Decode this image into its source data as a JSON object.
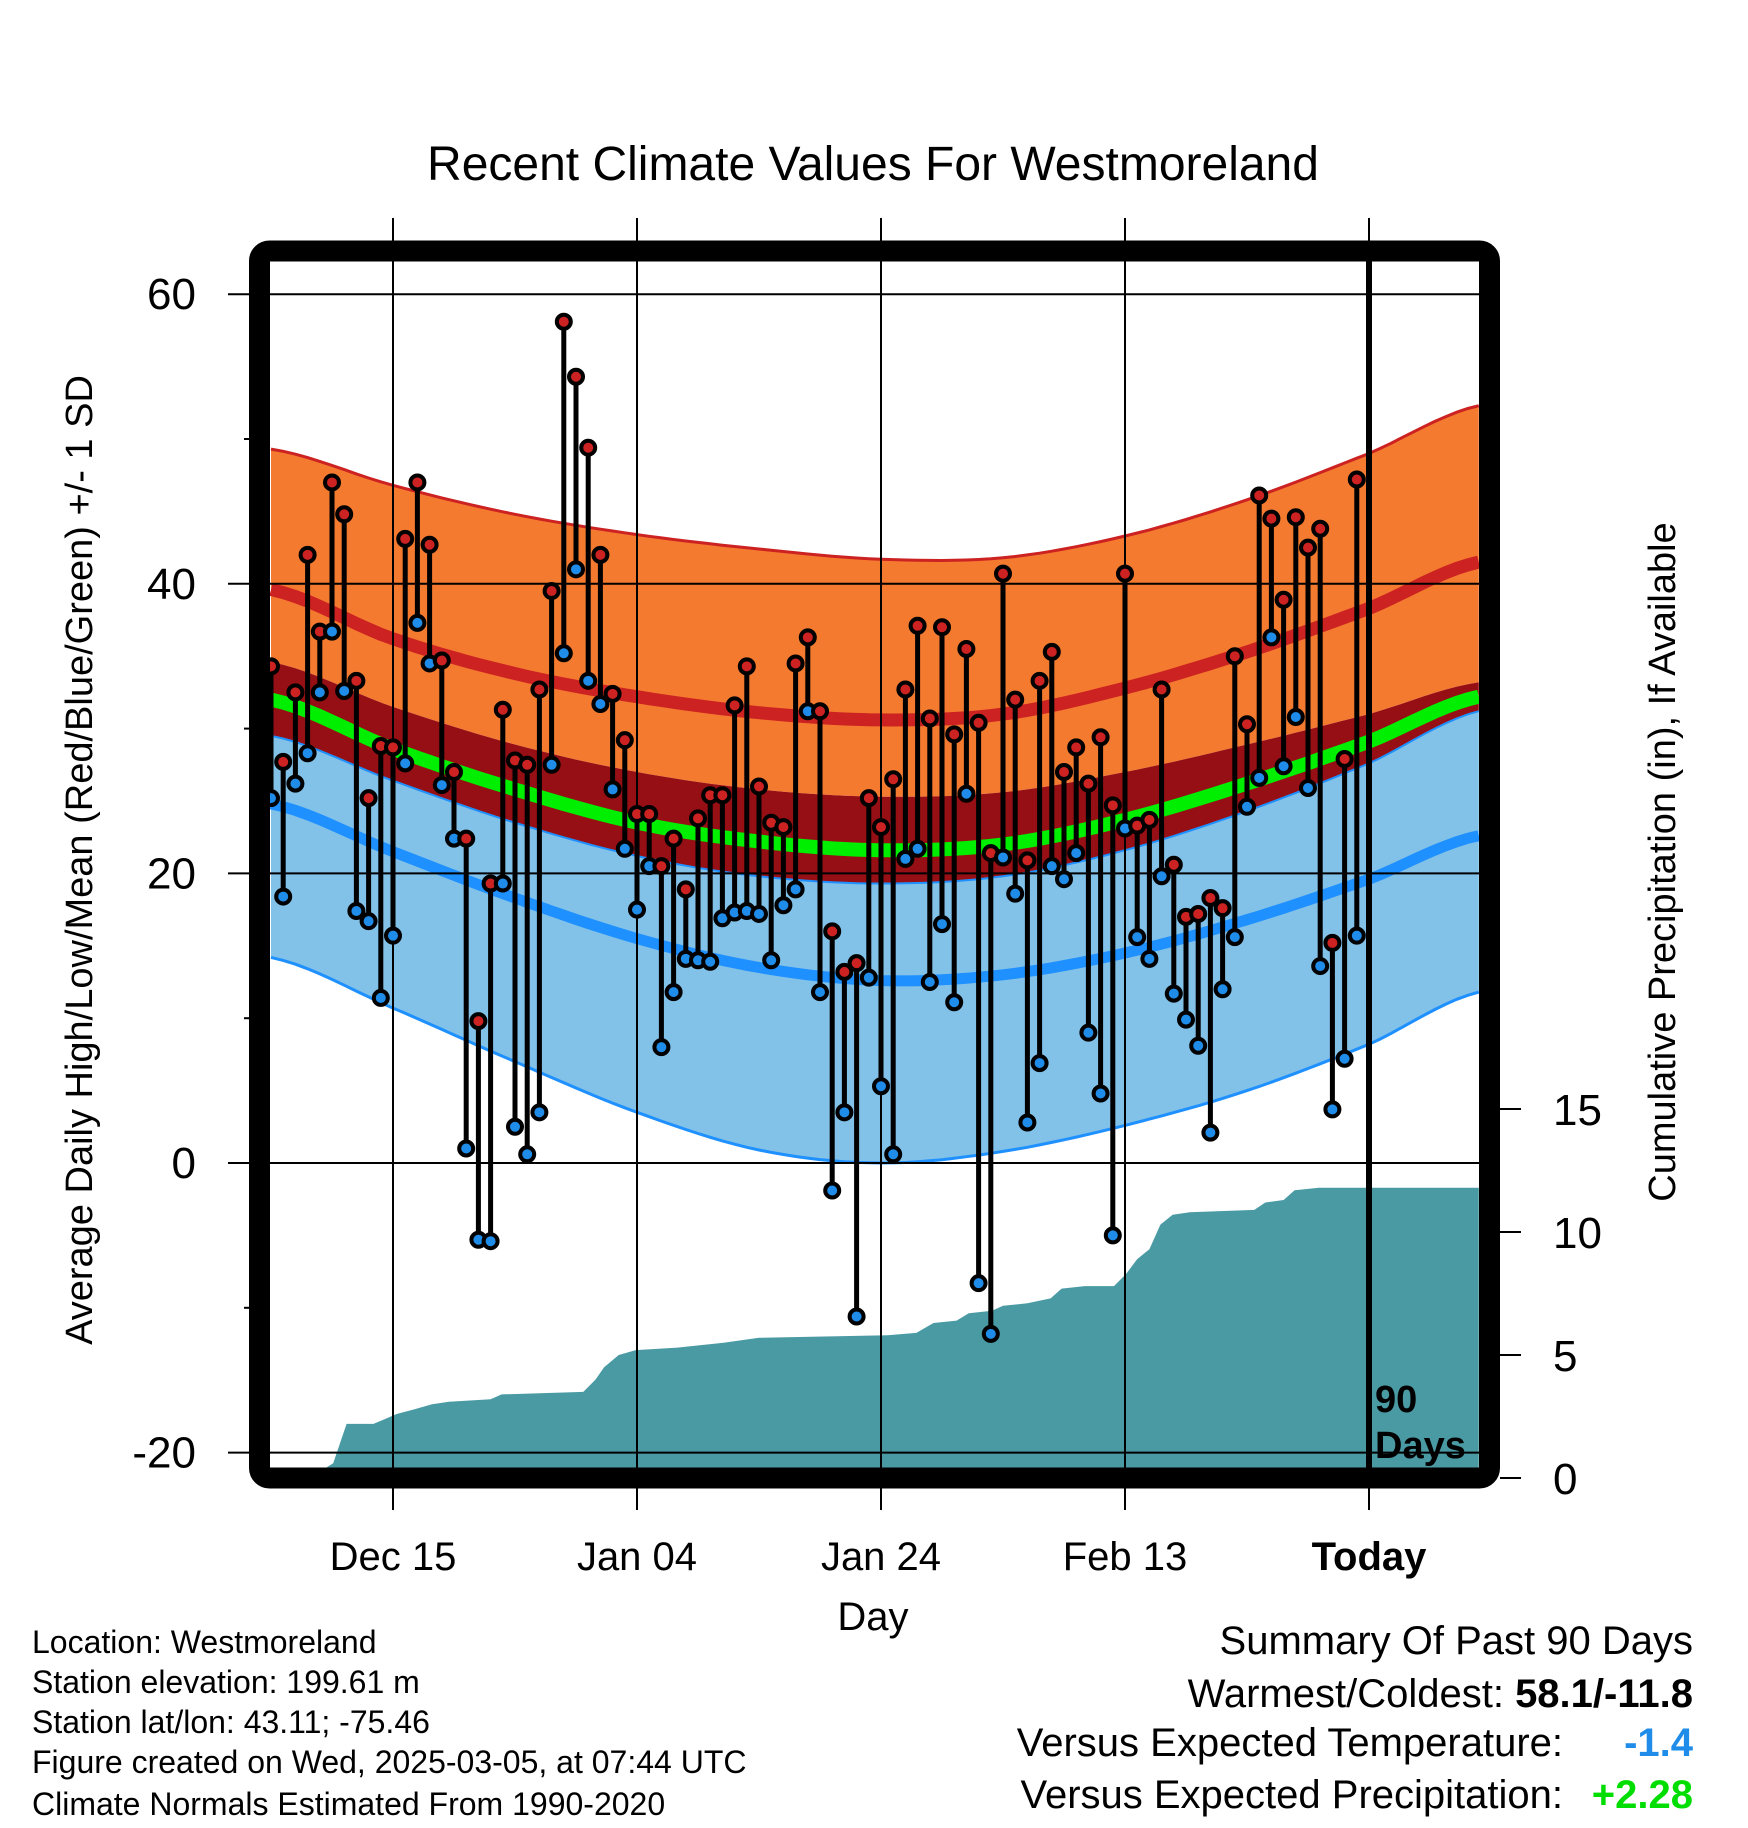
{
  "chart_data": {
    "type": "line",
    "title": "Recent Climate Values For Westmoreland",
    "xlabel": "Day",
    "ylabel": "Average Daily High/Low/Mean (Red/Blue/Green) +/- 1 SD",
    "y2label": "Cumulative Precipitation (in), If Available",
    "xlim": [
      -90,
      9
    ],
    "ylim": [
      -21.5,
      63.5
    ],
    "y2lim": [
      0,
      23
    ],
    "x_ticks": [
      {
        "day": -80,
        "label": "Dec 15"
      },
      {
        "day": -60,
        "label": "Jan 04"
      },
      {
        "day": -40,
        "label": "Jan 24"
      },
      {
        "day": -20,
        "label": "Feb 13"
      },
      {
        "day": 0,
        "label": "Today"
      }
    ],
    "y_ticks": [
      {
        "value": 60,
        "label": "60"
      },
      {
        "value": 40,
        "label": "40"
      },
      {
        "value": 20,
        "label": "20"
      },
      {
        "value": 0,
        "label": "0"
      },
      {
        "value": -20,
        "label": "-20"
      }
    ],
    "y_minor_ticks": [
      50,
      30,
      10,
      -10
    ],
    "y2_ticks": [
      {
        "value": 15,
        "label": "15"
      },
      {
        "value": 10,
        "label": "10"
      },
      {
        "value": 5,
        "label": "5"
      },
      {
        "value": 0,
        "label": "0"
      }
    ],
    "today_label": [
      "90",
      "Days"
    ],
    "grid": true,
    "normals": {
      "days": [
        -90,
        -80,
        -70,
        -60,
        -50,
        -40,
        -30,
        -20,
        -10,
        0,
        9
      ],
      "high_plus_sd": [
        49.3,
        46.8,
        44.8,
        43.4,
        42.4,
        41.7,
        41.8,
        43.3,
        45.8,
        49.0,
        52.3
      ],
      "high_mean": [
        39.6,
        36.2,
        33.8,
        32.2,
        31.1,
        30.6,
        31.0,
        32.8,
        35.3,
        38.3,
        41.5
      ],
      "high_minus_sd": [
        34.6,
        31.5,
        28.9,
        27.0,
        25.8,
        25.3,
        25.6,
        27.0,
        28.9,
        31.0,
        33.2
      ],
      "mean": [
        32.0,
        28.6,
        25.8,
        23.5,
        22.2,
        21.6,
        22.0,
        23.7,
        26.2,
        29.1,
        32.2
      ],
      "low_plus_sd": [
        29.5,
        26.4,
        23.5,
        21.2,
        19.8,
        19.3,
        19.8,
        21.6,
        24.3,
        27.6,
        31.2
      ],
      "low_mean": [
        24.8,
        21.5,
        18.3,
        15.5,
        13.5,
        12.6,
        13.0,
        14.5,
        16.8,
        19.6,
        22.6
      ],
      "low_minus_sd": [
        14.2,
        10.7,
        7.0,
        3.5,
        0.9,
        0.0,
        0.8,
        2.6,
        5.0,
        8.2,
        11.8
      ]
    },
    "observed": {
      "start_day": -90,
      "high": [
        34.3,
        27.7,
        32.5,
        42,
        36.7,
        47,
        44.8,
        33.3,
        25.2,
        28.8,
        28.7,
        43.1,
        47,
        42.7,
        34.7,
        27,
        22.4,
        9.8,
        19.3,
        31.3,
        27.8,
        27.5,
        32.7,
        39.5,
        58.1,
        54.3,
        49.4,
        42,
        32.4,
        29.2,
        24.1,
        24.1,
        20.5,
        22.4,
        18.9,
        23.8,
        25.4,
        25.4,
        31.6,
        34.3,
        26,
        23.5,
        23.2,
        34.5,
        36.3,
        31.2,
        16,
        13.2,
        13.8,
        25.2,
        23.2,
        26.5,
        32.7,
        37.1,
        30.7,
        37,
        29.6,
        35.5,
        30.4,
        21.4,
        40.7,
        32,
        20.9,
        33.3,
        35.3,
        27,
        28.7,
        26.2,
        29.4,
        24.7,
        40.7,
        23.3,
        23.7,
        32.7,
        20.6,
        17,
        17.2,
        18.3,
        17.6,
        35,
        30.3,
        46.1,
        44.5,
        38.9,
        44.6,
        42.5,
        43.8,
        15.2,
        27.9,
        47.2
      ],
      "low": [
        25.2,
        18.4,
        26.2,
        28.3,
        32.5,
        36.7,
        32.6,
        17.4,
        16.7,
        11.4,
        15.7,
        27.6,
        37.3,
        34.5,
        26.1,
        22.4,
        1,
        -5.3,
        -5.4,
        19.3,
        2.5,
        0.6,
        3.5,
        27.5,
        35.2,
        41,
        33.3,
        31.7,
        25.8,
        21.7,
        17.5,
        20.5,
        8,
        11.8,
        14.1,
        14,
        13.9,
        16.9,
        17.3,
        17.4,
        17.2,
        14,
        17.8,
        18.9,
        31.2,
        11.8,
        -1.9,
        3.5,
        -10.6,
        12.8,
        5.3,
        0.6,
        21,
        21.7,
        12.5,
        16.5,
        11.1,
        25.5,
        -8.3,
        -11.8,
        21.1,
        18.6,
        2.8,
        6.9,
        20.5,
        19.6,
        21.4,
        9,
        4.8,
        -5,
        23.1,
        15.6,
        14.1,
        19.8,
        11.7,
        9.9,
        8.1,
        2.1,
        12,
        15.6,
        24.6,
        26.6,
        36.3,
        27.4,
        30.8,
        25.9,
        13.6,
        3.7,
        7.2,
        15.7
      ]
    },
    "precipitation": {
      "days": [
        -90,
        -86.8,
        -84.9,
        -83.8,
        -81.6,
        -79.7,
        -78.2,
        -76.8,
        -75.4,
        -72,
        -71.1,
        -64.4,
        -63.4,
        -62.7,
        -61.5,
        -60.1,
        -56.7,
        -52.9,
        -50,
        -39.5,
        -37.1,
        -35.7,
        -33.8,
        -32.8,
        -30.9,
        -30,
        -28,
        -26.1,
        -25.2,
        -23.3,
        -20.9,
        -19.9,
        -19,
        -18,
        -17.1,
        -16.1,
        -14.7,
        -9.4,
        -8.5,
        -7,
        -6.1,
        -4.1,
        0,
        9
      ],
      "inches": [
        0,
        0,
        0.6,
        2.2,
        2.2,
        2.6,
        2.8,
        3.0,
        3.1,
        3.2,
        3.4,
        3.5,
        4.0,
        4.5,
        5.0,
        5.2,
        5.3,
        5.5,
        5.7,
        5.8,
        5.9,
        6.3,
        6.4,
        6.7,
        6.8,
        7.0,
        7.1,
        7.3,
        7.7,
        7.8,
        7.8,
        8.3,
        8.9,
        9.3,
        10.3,
        10.7,
        10.8,
        10.9,
        11.2,
        11.3,
        11.7,
        11.8,
        11.8,
        11.8
      ]
    },
    "colors": {
      "orange": "#f47a2f",
      "high_line": "#cc2222",
      "dark_red": "#960f14",
      "green": "#00ee00",
      "light_blue": "#82c1e8",
      "low_line": "#1e90ff",
      "precip": "#4a9aa4",
      "high_dot": "#cc2222",
      "low_dot": "#1e8ce8"
    }
  },
  "footer": {
    "location": "Location: Westmoreland",
    "elevation": "Station elevation: 199.61 m",
    "latlon": "Station lat/lon: 43.11; -75.46",
    "created": "Figure created on Wed, 2025-03-05, at 07:44 UTC",
    "normals": "Climate Normals Estimated From 1990-2020"
  },
  "summary": {
    "title": "Summary Of Past 90 Days",
    "warmest_label": "Warmest/Coldest: ",
    "warmest_value": "58.1/-11.8",
    "temp_label": "Versus Expected Temperature:",
    "temp_value": "-1.4",
    "temp_color": "#1e8ce8",
    "precip_label": "Versus Expected Precipitation:",
    "precip_value": "+2.28",
    "precip_color": "#00dd00"
  }
}
